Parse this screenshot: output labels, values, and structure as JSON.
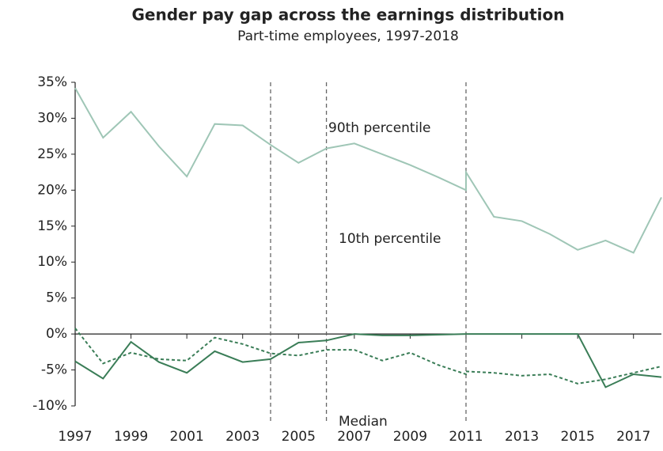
{
  "chart_data": {
    "type": "line",
    "title": "Gender pay gap across the earnings distribution",
    "subtitle": "Part-time employees, 1997-2018",
    "x": [
      1997,
      1998,
      1999,
      2000,
      2001,
      2002,
      2003,
      2004,
      2005,
      2006,
      2007,
      2008,
      2009,
      2010,
      2011,
      2011,
      2012,
      2013,
      2014,
      2015,
      2016,
      2017,
      2018
    ],
    "series": [
      {
        "name": "90th percentile",
        "color": "#9fc6b6",
        "dash": false,
        "values": [
          34.2,
          27.3,
          30.9,
          26.1,
          21.9,
          29.2,
          29.0,
          26.3,
          23.8,
          25.8,
          26.5,
          25.0,
          23.5,
          21.8,
          20.0,
          22.5,
          16.3,
          15.7,
          13.9,
          11.7,
          13.0,
          11.3,
          19.0
        ]
      },
      {
        "name": "10th percentile",
        "color": "#3a7d57",
        "dash": false,
        "values": [
          -3.8,
          -6.2,
          -1.1,
          -3.9,
          -5.4,
          -2.4,
          -3.9,
          -3.5,
          -1.2,
          -0.9,
          0,
          -0.2,
          -0.2,
          -0.1,
          0,
          0,
          0,
          0,
          0,
          0,
          -7.4,
          -5.6,
          -6.0
        ]
      },
      {
        "name": "Median",
        "color": "#3a7d57",
        "dash": true,
        "values": [
          0.8,
          -4.1,
          -2.6,
          -3.5,
          -3.7,
          -0.5,
          -1.4,
          -2.7,
          -3.0,
          -2.2,
          -2.2,
          -3.7,
          -2.6,
          -4.3,
          -5.6,
          -5.2,
          -5.4,
          -5.8,
          -5.6,
          -6.9,
          -6.3,
          -5.4,
          -4.5
        ]
      }
    ],
    "vlines": [
      2004,
      2006,
      2011
    ],
    "xlim": [
      1997,
      2018
    ],
    "xticks": [
      1997,
      1999,
      2001,
      2003,
      2005,
      2007,
      2009,
      2011,
      2013,
      2015,
      2017
    ],
    "ylim": [
      -10,
      35
    ],
    "yticks": [
      {
        "value": -10,
        "label": "-10%"
      },
      {
        "value": -5,
        "label": "-5%"
      },
      {
        "value": 0,
        "label": "0%"
      },
      {
        "value": 5,
        "label": "5%"
      },
      {
        "value": 10,
        "label": "10%"
      },
      {
        "value": 15,
        "label": "15%"
      },
      {
        "value": 20,
        "label": "20%"
      },
      {
        "value": 25,
        "label": "25%"
      },
      {
        "value": 30,
        "label": "30%"
      },
      {
        "value": 35,
        "label": "35%"
      }
    ],
    "grid": false
  }
}
